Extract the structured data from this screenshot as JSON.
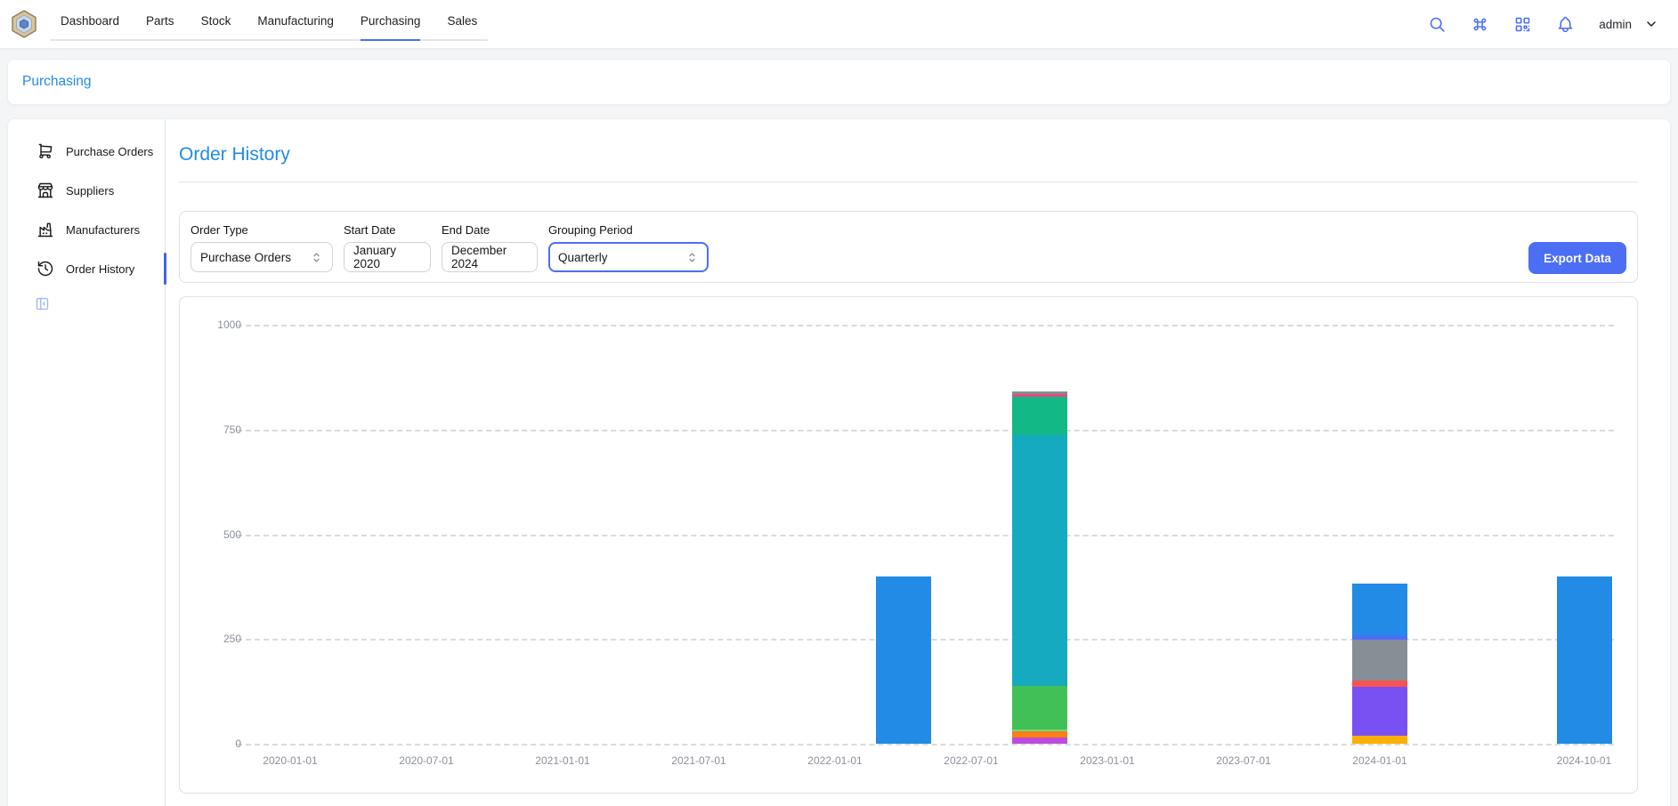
{
  "navbar": {
    "tabs": [
      "Dashboard",
      "Parts",
      "Stock",
      "Manufacturing",
      "Purchasing",
      "Sales"
    ],
    "active_tab": "Purchasing",
    "icons": [
      "search",
      "command",
      "qr-scan",
      "notifications"
    ],
    "username": "admin"
  },
  "breadcrumb": {
    "label": "Purchasing"
  },
  "sidebar": {
    "items": [
      {
        "label": "Purchase Orders",
        "icon": "shopping-cart",
        "active": false
      },
      {
        "label": "Suppliers",
        "icon": "building-store",
        "active": false
      },
      {
        "label": "Manufacturers",
        "icon": "building-factory",
        "active": false
      },
      {
        "label": "Order History",
        "icon": "history",
        "active": true
      }
    ]
  },
  "main": {
    "title": "Order History",
    "filters": {
      "order_type": {
        "label": "Order Type",
        "value": "Purchase Orders"
      },
      "start_date": {
        "label": "Start Date",
        "value": "January 2020"
      },
      "end_date": {
        "label": "End Date",
        "value": "December 2024"
      },
      "grouping": {
        "label": "Grouping Period",
        "value": "Quarterly"
      }
    },
    "export_button": "Export Data"
  },
  "colors": {
    "accent": "#4c6ef5",
    "link_blue": "#228be6",
    "active_indicator": "#4263eb"
  },
  "chart_data": {
    "type": "bar",
    "stacked": true,
    "title": "",
    "xlabel": "",
    "ylabel": "",
    "ylim": [
      0,
      1000
    ],
    "yticks": [
      0,
      250,
      500,
      750,
      1000
    ],
    "grid": "dashed-horizontal",
    "legend": "none",
    "xticks": [
      "2020-01-01",
      "2020-07-01",
      "2021-01-01",
      "2021-07-01",
      "2022-01-01",
      "2022-07-01",
      "2023-01-01",
      "2023-07-01",
      "2024-01-01",
      "2024-10-01"
    ],
    "bars": [
      {
        "date": "2022-04-01",
        "total": 400,
        "segments": [
          {
            "color": "#228be6",
            "value": 400
          }
        ]
      },
      {
        "date": "2022-10-01",
        "total": 840,
        "segments": [
          {
            "color": "#be4bdb",
            "value": 14
          },
          {
            "color": "#fd7e14",
            "value": 15
          },
          {
            "color": "#69db7c",
            "value": 6
          },
          {
            "color": "#40c057",
            "value": 102
          },
          {
            "color": "#15aabf",
            "value": 599
          },
          {
            "color": "#12b886",
            "value": 91
          },
          {
            "color": "#e64980",
            "value": 7
          },
          {
            "color": "#868e96",
            "value": 6
          }
        ]
      },
      {
        "date": "2024-01-01",
        "total": 383,
        "segments": [
          {
            "color": "#fab005",
            "value": 19
          },
          {
            "color": "#7950f2",
            "value": 117
          },
          {
            "color": "#fa5252",
            "value": 15
          },
          {
            "color": "#868e96",
            "value": 98
          },
          {
            "color": "#4c6ef5",
            "value": 11
          },
          {
            "color": "#228be6",
            "value": 123
          }
        ]
      },
      {
        "date": "2024-10-01",
        "total": 400,
        "segments": [
          {
            "color": "#228be6",
            "value": 400
          }
        ]
      }
    ]
  }
}
